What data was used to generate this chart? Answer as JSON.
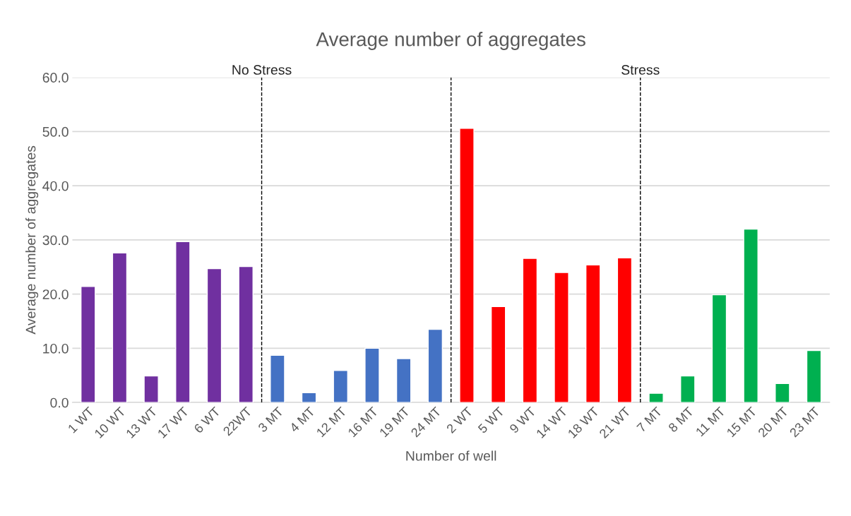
{
  "chart_data": {
    "type": "bar",
    "title": "Average number of aggregates",
    "xlabel": "Number of well",
    "ylabel": "Average number of aggregates",
    "categories": [
      "1 WT",
      "10 WT",
      "13 WT",
      "17 WT",
      "6 WT",
      "22WT",
      "3 MT",
      "4 MT",
      "12 MT",
      "16 MT",
      "19 MT",
      "24 MT",
      "2 WT",
      "5 WT",
      "9 WT",
      "14 WT",
      "18 WT",
      "21 WT",
      "7 MT",
      "8 MT",
      "11 MT",
      "15 MT",
      "20 MT",
      "23 MT"
    ],
    "values": [
      21.4,
      27.6,
      4.9,
      29.7,
      24.7,
      25.1,
      8.7,
      1.8,
      5.9,
      10.0,
      8.1,
      13.5,
      50.6,
      17.7,
      26.6,
      24.0,
      25.4,
      26.7,
      1.7,
      4.9,
      19.9,
      32.0,
      3.5,
      9.6
    ],
    "colors": [
      "#7030a0",
      "#7030a0",
      "#7030a0",
      "#7030a0",
      "#7030a0",
      "#7030a0",
      "#4472c4",
      "#4472c4",
      "#4472c4",
      "#4472c4",
      "#4472c4",
      "#4472c4",
      "#ff0000",
      "#ff0000",
      "#ff0000",
      "#ff0000",
      "#ff0000",
      "#ff0000",
      "#00b050",
      "#00b050",
      "#00b050",
      "#00b050",
      "#00b050",
      "#00b050"
    ],
    "ylim": [
      0,
      60
    ],
    "yticks": [
      {
        "value": 0,
        "label": "0.0"
      },
      {
        "value": 10,
        "label": "10.0"
      },
      {
        "value": 20,
        "label": "20.0"
      },
      {
        "value": 30,
        "label": "30.0"
      },
      {
        "value": 40,
        "label": "40.0"
      },
      {
        "value": 50,
        "label": "50.0"
      },
      {
        "value": 60,
        "label": "60.0"
      }
    ],
    "grid": "y",
    "annotations": [
      "No Stress",
      "Stress"
    ]
  }
}
